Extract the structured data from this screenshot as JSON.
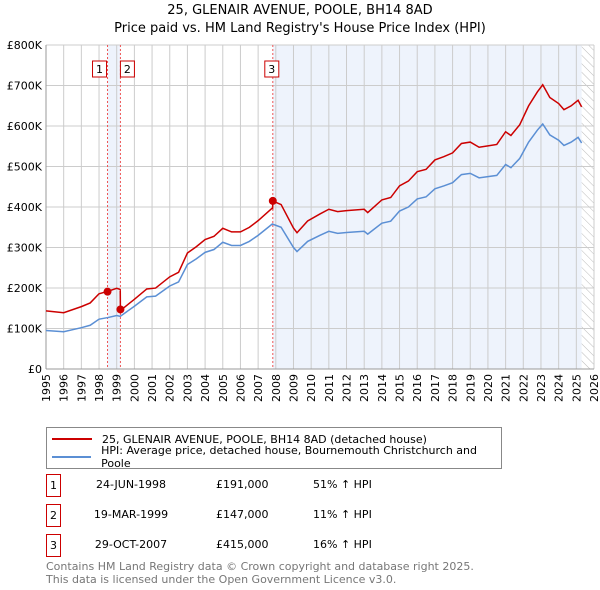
{
  "title": "25, GLENAIR AVENUE, POOLE, BH14 8AD",
  "subtitle": "Price paid vs. HM Land Registry's House Price Index (HPI)",
  "chart_data": {
    "type": "line",
    "title": "25, GLENAIR AVENUE, POOLE, BH14 8AD",
    "subtitle": "Price paid vs. HM Land Registry's House Price Index (HPI)",
    "xlim": [
      1995,
      2026
    ],
    "ylim": [
      0,
      800000
    ],
    "x_ticks": [
      "1995",
      "1996",
      "1997",
      "1998",
      "1999",
      "2000",
      "2001",
      "2002",
      "2003",
      "2004",
      "2005",
      "2006",
      "2007",
      "2008",
      "2009",
      "2010",
      "2011",
      "2012",
      "2013",
      "2014",
      "2015",
      "2016",
      "2017",
      "2018",
      "2019",
      "2020",
      "2021",
      "2022",
      "2023",
      "2024",
      "2025",
      "2026"
    ],
    "y_ticks": [
      {
        "v": 0,
        "label": "£0"
      },
      {
        "v": 100000,
        "label": "£100K"
      },
      {
        "v": 200000,
        "label": "£200K"
      },
      {
        "v": 300000,
        "label": "£300K"
      },
      {
        "v": 400000,
        "label": "£400K"
      },
      {
        "v": 500000,
        "label": "£500K"
      },
      {
        "v": 600000,
        "label": "£600K"
      },
      {
        "v": 700000,
        "label": "£700K"
      },
      {
        "v": 800000,
        "label": "£800K"
      }
    ],
    "grid": true,
    "forecast_from": 2025.3,
    "hpi_series": {
      "name": "HPI: Average price, detached house, Bournemouth Christchurch and Poole",
      "color": "#5b8fd4",
      "points": [
        [
          1995,
          95
        ],
        [
          1996,
          92
        ],
        [
          1997,
          102
        ],
        [
          1997.5,
          108
        ],
        [
          1998,
          123
        ],
        [
          1998.5,
          127
        ],
        [
          1999,
          132
        ],
        [
          1999.2,
          130
        ],
        [
          2000,
          155
        ],
        [
          2000.7,
          178
        ],
        [
          2001.2,
          180
        ],
        [
          2002,
          205
        ],
        [
          2002.5,
          215
        ],
        [
          2003,
          258
        ],
        [
          2003.5,
          272
        ],
        [
          2004,
          288
        ],
        [
          2004.5,
          295
        ],
        [
          2005,
          313
        ],
        [
          2005.5,
          305
        ],
        [
          2006,
          305
        ],
        [
          2006.5,
          315
        ],
        [
          2007,
          330
        ],
        [
          2007.8,
          358
        ],
        [
          2008.3,
          350
        ],
        [
          2009,
          300
        ],
        [
          2009.2,
          290
        ],
        [
          2009.8,
          315
        ],
        [
          2010.5,
          330
        ],
        [
          2011,
          340
        ],
        [
          2011.5,
          335
        ],
        [
          2012,
          337
        ],
        [
          2013,
          340
        ],
        [
          2013.2,
          333
        ],
        [
          2014,
          360
        ],
        [
          2014.5,
          365
        ],
        [
          2015,
          390
        ],
        [
          2015.5,
          400
        ],
        [
          2016,
          420
        ],
        [
          2016.5,
          425
        ],
        [
          2017,
          445
        ],
        [
          2017.5,
          452
        ],
        [
          2018,
          460
        ],
        [
          2018.5,
          480
        ],
        [
          2019,
          483
        ],
        [
          2019.5,
          472
        ],
        [
          2020,
          475
        ],
        [
          2020.5,
          478
        ],
        [
          2021,
          505
        ],
        [
          2021.3,
          497
        ],
        [
          2021.8,
          520
        ],
        [
          2022.3,
          560
        ],
        [
          2022.8,
          590
        ],
        [
          2023.1,
          605
        ],
        [
          2023.5,
          578
        ],
        [
          2024,
          565
        ],
        [
          2024.3,
          552
        ],
        [
          2024.7,
          560
        ],
        [
          2025.1,
          572
        ],
        [
          2025.3,
          558
        ]
      ]
    },
    "property_series": {
      "name": "25, GLENAIR AVENUE, POOLE, BH14 8AD (detached house)",
      "color": "#cc0000"
    },
    "sales": [
      {
        "n": "1",
        "x": 1998.48,
        "y": 191000
      },
      {
        "n": "2",
        "x": 1999.21,
        "y": 147000
      },
      {
        "n": "3",
        "x": 2007.83,
        "y": 415000
      }
    ],
    "factors": [
      1.51,
      1.11,
      1.16
    ]
  },
  "legend": {
    "property": "25, GLENAIR AVENUE, POOLE, BH14 8AD (detached house)",
    "hpi": "HPI: Average price, detached house, Bournemouth Christchurch and Poole"
  },
  "sales_table": [
    {
      "n": "1",
      "date": "24-JUN-1998",
      "price": "£191,000",
      "hpi": "51% ↑ HPI"
    },
    {
      "n": "2",
      "date": "19-MAR-1999",
      "price": "£147,000",
      "hpi": "11% ↑ HPI"
    },
    {
      "n": "3",
      "date": "29-OCT-2007",
      "price": "£415,000",
      "hpi": "16% ↑ HPI"
    }
  ],
  "footer": {
    "line1": "Contains HM Land Registry data © Crown copyright and database right 2025.",
    "line2": "This data is licensed under the Open Government Licence v3.0."
  }
}
